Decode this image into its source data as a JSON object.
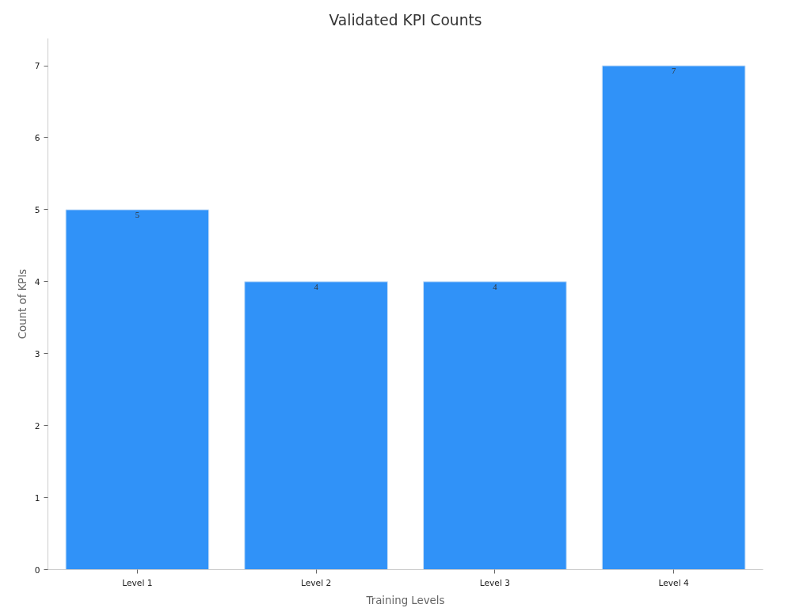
{
  "chart_data": {
    "type": "bar",
    "title": "Validated KPI Counts",
    "xlabel": "Training Levels",
    "ylabel": "Count of KPIs",
    "categories": [
      "Level 1",
      "Level 2",
      "Level 3",
      "Level 4"
    ],
    "values": [
      5,
      4,
      4,
      7
    ],
    "color": "#3092f8",
    "ylim": [
      0,
      7.38
    ],
    "yticks": [
      0,
      1,
      2,
      3,
      4,
      5,
      6,
      7
    ],
    "grid": false,
    "data_labels": true
  }
}
